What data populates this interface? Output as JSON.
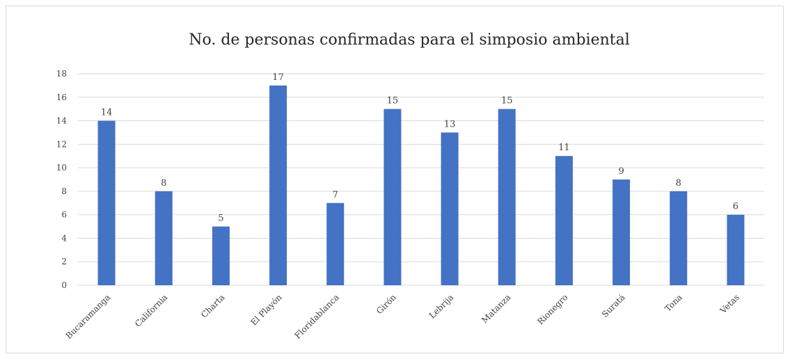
{
  "chart_data": {
    "type": "bar",
    "title": "No. de personas confirmadas para el simposio ambiental",
    "xlabel": "",
    "ylabel": "",
    "categories": [
      "Bucaramanga",
      "California",
      "Charta",
      "El Playón",
      "Floridablanca",
      "Girón",
      "Lebrija",
      "Matanza",
      "Rionegro",
      "Suratá",
      "Tona",
      "Vetas"
    ],
    "values": [
      14,
      8,
      5,
      17,
      7,
      15,
      13,
      15,
      11,
      9,
      8,
      6
    ],
    "ylim": [
      0,
      18
    ],
    "yticks": [
      "0",
      "2",
      "4",
      "6",
      "8",
      "10",
      "12",
      "14",
      "16",
      "18"
    ],
    "grid": true,
    "legend": "none",
    "bar_color": "#4472C4",
    "data_labels": true
  }
}
